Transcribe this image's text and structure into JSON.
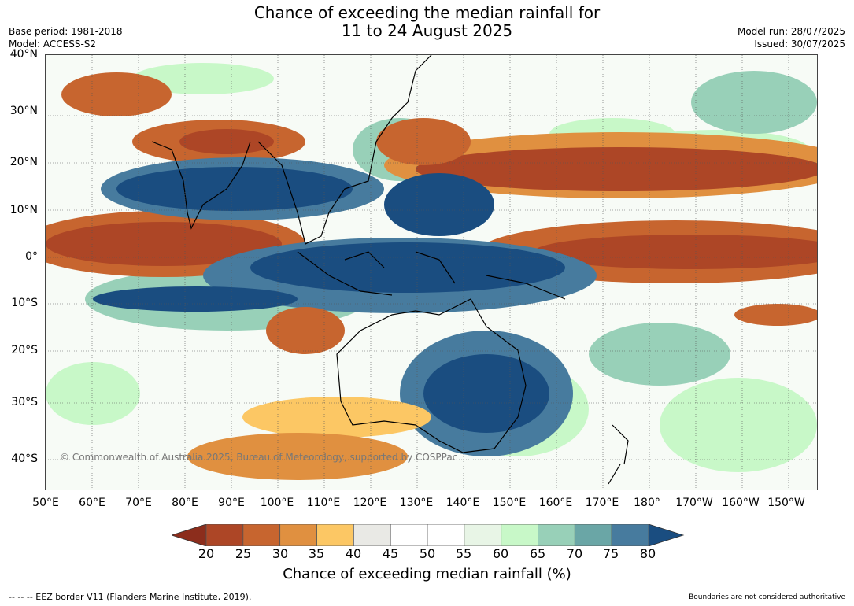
{
  "title_line1": "Chance of exceeding the median rainfall for",
  "title_line2": "11 to 24 August 2025",
  "base_period": "Base period: 1981-2018",
  "model": "Model: ACCESS-S2",
  "model_run": "Model run: 28/07/2025",
  "issued": "Issued: 30/07/2025",
  "lat_labels": [
    "40°N",
    "30°N",
    "20°N",
    "10°N",
    "0°",
    "10°S",
    "20°S",
    "30°S",
    "40°S"
  ],
  "lon_labels": [
    "50°E",
    "60°E",
    "70°E",
    "80°E",
    "90°E",
    "100°E",
    "110°E",
    "120°E",
    "130°E",
    "140°E",
    "150°E",
    "160°E",
    "170°E",
    "180°",
    "170°W",
    "160°W",
    "150°W"
  ],
  "colorbar": {
    "title": "Chance of exceeding median rainfall (%)",
    "ticks": [
      "20",
      "25",
      "30",
      "35",
      "40",
      "45",
      "50",
      "55",
      "60",
      "65",
      "70",
      "75",
      "80"
    ],
    "low_color": "#8c2d1c",
    "high_color": "#1a4d80",
    "colors": [
      "#ad4626",
      "#c7652f",
      "#e09040",
      "#fcc764",
      "#e9e9e5",
      "#ffffff",
      "#ffffff",
      "#e8f5e6",
      "#c8f8c8",
      "#98d0b8",
      "#6aa6a6",
      "#477b9e"
    ]
  },
  "copyright": "© Commonwealth of Australia 2025, Bureau of Meteorology, supported by COSPPac",
  "footer_left": "--  --  -- EEZ border V11 (Flanders Marine Institute, 2019).",
  "footer_right": "Boundaries are not considered authoritative"
}
